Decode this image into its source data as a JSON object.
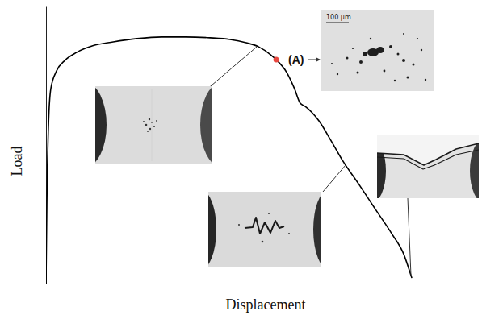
{
  "chart_data": {
    "type": "line",
    "x_label": "Displacement",
    "y_label": "Load",
    "x": [
      0,
      0.2,
      0.6,
      1.1,
      2.4,
      4.3,
      7.0,
      10.7,
      15.4,
      20.9,
      26.5,
      32.0,
      37.6,
      42.2,
      45.9,
      48.7,
      51.5,
      52.8,
      55.2,
      57.0,
      58.3,
      59.4,
      62.6,
      65.4,
      68.1,
      71.9,
      75.6,
      79.3,
      82.0,
      83.9
    ],
    "values": [
      0,
      29.7,
      58.7,
      70.3,
      76.7,
      80.5,
      83.4,
      85.8,
      87.2,
      88.4,
      89.0,
      89.0,
      88.7,
      88.1,
      86.9,
      85.5,
      82.6,
      80.8,
      76.2,
      70.3,
      65.1,
      64.0,
      58.7,
      51.5,
      44.2,
      35.5,
      26.7,
      18.0,
      10.8,
      2.0
    ],
    "color": "#000000",
    "xlim": [
      0,
      100
    ],
    "ylim": [
      0,
      100
    ],
    "tick_labels": false,
    "annotations": [
      {
        "text": "(A)",
        "x": 52.8,
        "y": 80.8
      },
      {
        "text": "100 μm"
      }
    ]
  }
}
